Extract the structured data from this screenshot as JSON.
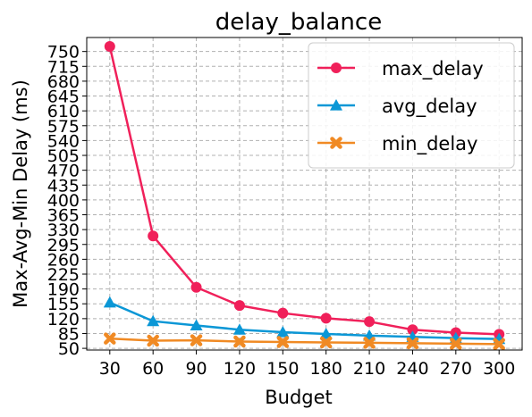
{
  "chart_data": {
    "type": "line",
    "title": "delay_balance",
    "xlabel": "Budget",
    "ylabel": "Max-Avg-Min Delay (ms)",
    "x": [
      30,
      60,
      90,
      120,
      150,
      180,
      210,
      240,
      270,
      300
    ],
    "xlim": [
      14,
      316
    ],
    "ylim": [
      46,
      783
    ],
    "yticks": [
      50,
      85,
      120,
      155,
      190,
      225,
      260,
      295,
      330,
      365,
      400,
      435,
      470,
      505,
      540,
      575,
      610,
      645,
      680,
      715,
      750
    ],
    "grid": true,
    "legend_position": "top-right",
    "series": [
      {
        "name": "max_delay",
        "color": "#f0205a",
        "marker": "circle",
        "values": [
          762,
          315,
          194,
          151,
          133,
          121,
          113,
          94,
          87,
          83
        ]
      },
      {
        "name": "avg_delay",
        "color": "#0b97d6",
        "marker": "triangle",
        "values": [
          158,
          114,
          104,
          94,
          88,
          84,
          80,
          77,
          74,
          72
        ]
      },
      {
        "name": "min_delay",
        "color": "#f08a24",
        "marker": "x",
        "values": [
          73,
          68,
          69,
          66,
          65,
          64,
          63,
          62,
          61,
          60
        ]
      }
    ]
  }
}
